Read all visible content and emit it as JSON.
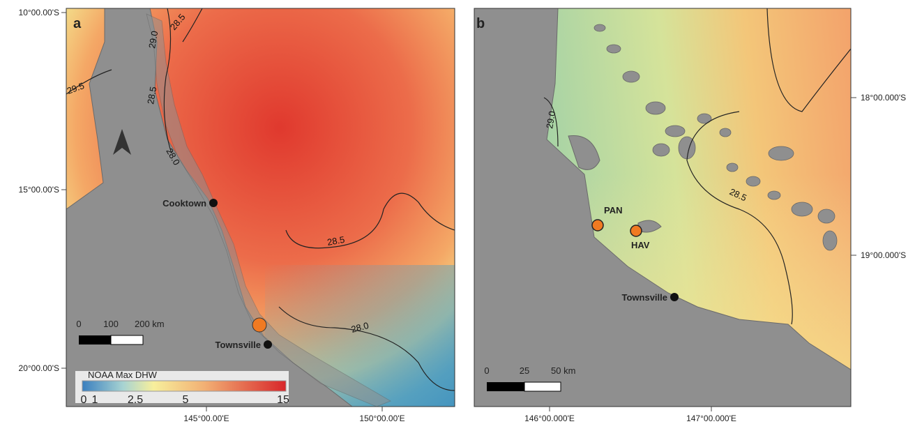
{
  "panel_a": {
    "label": "a",
    "lat_labels": [
      "10°00.00'S",
      "15°00.00'S",
      "20°00.00'S"
    ],
    "lon_labels": [
      "145°00.00'E",
      "150°00.00'E"
    ],
    "contour_labels": [
      "28.5",
      "29.0",
      "29.5",
      "28.5",
      "28.0",
      "28.5",
      "28.0"
    ],
    "places": [
      "Cooktown",
      "Townsville"
    ],
    "scale_labels": [
      "0",
      "100",
      "200 km"
    ],
    "legend": {
      "title": "NOAA Max DHW",
      "ticks": [
        "0",
        "1",
        "2.5",
        "5",
        "15"
      ]
    }
  },
  "panel_b": {
    "label": "b",
    "lat_labels": [
      "18°00.000'S",
      "19°00.000'S"
    ],
    "lon_labels": [
      "146°00.000'E",
      "147°00.000'E"
    ],
    "contour_labels": [
      "29.0",
      "28.5"
    ],
    "sites": [
      "PAN",
      "HAV"
    ],
    "places": [
      "Townsville"
    ],
    "scale_labels": [
      "0",
      "25",
      "50 km"
    ]
  }
}
